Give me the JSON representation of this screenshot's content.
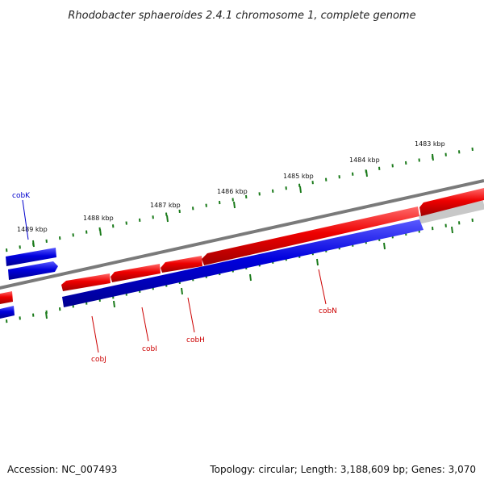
{
  "title": "Rhodobacter sphaeroides 2.4.1 chromosome 1, complete genome",
  "accession": "Accession: NC_007493",
  "info": "Topology: circular; Length: 3,188,609 bp; Genes: 3,070",
  "colors": {
    "forward_strand": "#ee0000",
    "reverse_strand": "#0000dd",
    "backbone": "#7a7a7a",
    "backbone_light": "#cccccc",
    "ticks": "#1a7a1a",
    "label_forward": "#cc0000",
    "label_reverse": "#0000cc"
  },
  "ticks": [
    {
      "label": "1483 kbp"
    },
    {
      "label": "1484 kbp"
    },
    {
      "label": "1485 kbp"
    },
    {
      "label": "1486 kbp"
    },
    {
      "label": "1487 kbp"
    },
    {
      "label": "1488 kbp"
    },
    {
      "label": "1489 kbp"
    }
  ],
  "genes": [
    {
      "name": "cobK",
      "strand": "reverse"
    },
    {
      "name": "cobJ",
      "strand": "forward"
    },
    {
      "name": "cobI",
      "strand": "forward"
    },
    {
      "name": "cobH",
      "strand": "forward"
    },
    {
      "name": "cobN",
      "strand": "forward"
    }
  ]
}
